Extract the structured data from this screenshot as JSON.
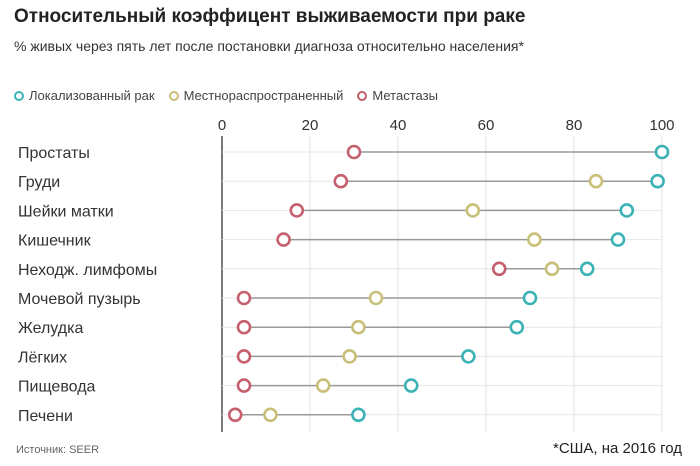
{
  "title": "Относительный коэффицент выживаемости при раке",
  "subtitle": "% живых через пять лет после постановки диагноза относительно населения*",
  "source": "Источник: SEER",
  "note": "*США, на 2016 год",
  "chart_data": {
    "type": "scatter",
    "title": "Относительный коэффицент выживаемости при раке",
    "xlim": [
      0,
      100
    ],
    "xticks": [
      "0",
      "20",
      "40",
      "60",
      "80",
      "100"
    ],
    "legend_position": "top-left",
    "categories": [
      "Простаты",
      "Груди",
      "Шейки матки",
      "Кишечник",
      "Неходж. лимфомы",
      "Мочевой пузырь",
      "Желудка",
      "Лёгких",
      "Пищевода",
      "Печени"
    ],
    "series": [
      {
        "name": "Локализованный рак",
        "color": "#3bb3b6",
        "values": [
          100,
          99,
          92,
          90,
          83,
          70,
          67,
          56,
          43,
          31
        ]
      },
      {
        "name": "Местнораспространенный",
        "color": "#c8bf78",
        "values": [
          100,
          85,
          57,
          71,
          75,
          35,
          31,
          29,
          23,
          11
        ]
      },
      {
        "name": "Метастазы",
        "color": "#c65f6e",
        "values": [
          30,
          27,
          17,
          14,
          63,
          5,
          5,
          5,
          5,
          3
        ]
      }
    ]
  }
}
